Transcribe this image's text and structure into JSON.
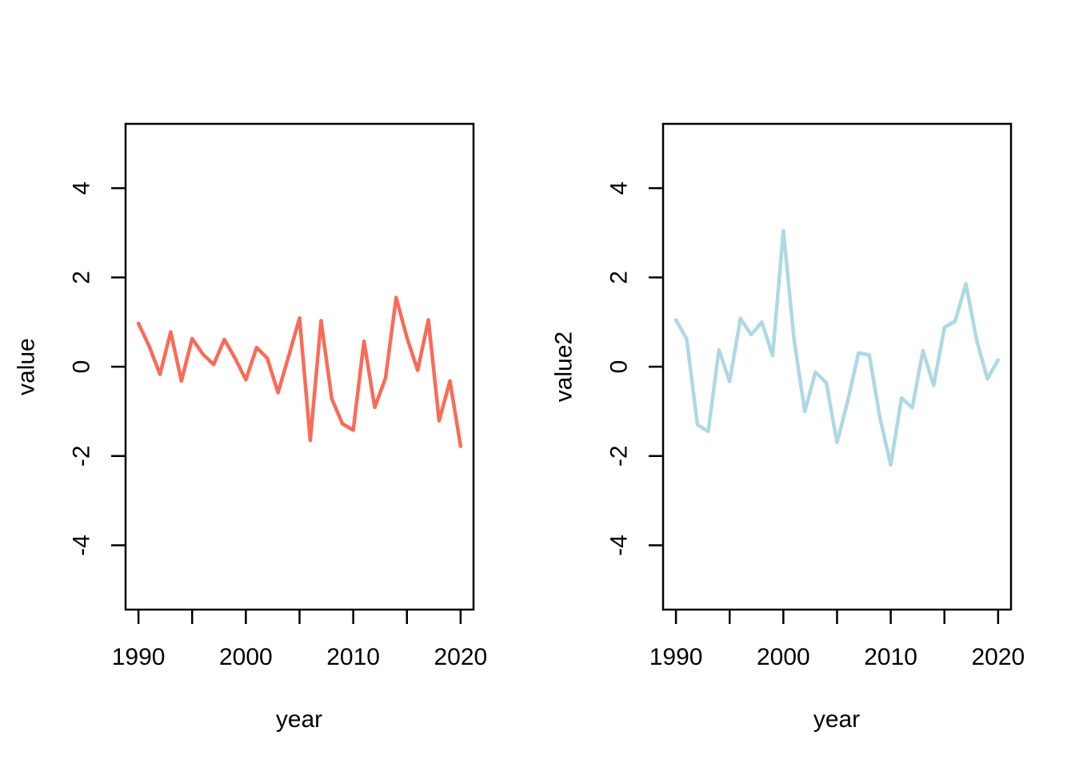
{
  "figure": {
    "background_color": "#FFFFFF",
    "axis_color": "#000000",
    "text_color": "#000000"
  },
  "chart_data": [
    {
      "type": "line",
      "panel": "left",
      "title": "",
      "xlabel": "year",
      "ylabel": "value",
      "line_color": "#FA6B57",
      "grid": false,
      "legend": null,
      "xlim": [
        1988.8,
        2021.2
      ],
      "ylim": [
        -5.44,
        5.44
      ],
      "xticks": [
        1990,
        1995,
        2000,
        2005,
        2010,
        2015,
        2020
      ],
      "xtick_labels": [
        "1990",
        "",
        "2000",
        "",
        "2010",
        "",
        "2020"
      ],
      "yticks": [
        -4,
        -2,
        0,
        2,
        4
      ],
      "ytick_labels": [
        "-4",
        "-2",
        "0",
        "2",
        "4"
      ],
      "x": [
        1990,
        1991,
        1992,
        1993,
        1994,
        1995,
        1996,
        1997,
        1998,
        1999,
        2000,
        2001,
        2002,
        2003,
        2004,
        2005,
        2006,
        2007,
        2008,
        2009,
        2010,
        2011,
        2012,
        2013,
        2014,
        2015,
        2016,
        2017,
        2018,
        2019,
        2020
      ],
      "values": [
        0.97,
        0.46,
        -0.17,
        0.78,
        -0.32,
        0.63,
        0.28,
        0.05,
        0.61,
        0.19,
        -0.29,
        0.43,
        0.19,
        -0.58,
        0.25,
        1.09,
        -1.65,
        1.03,
        -0.72,
        -1.28,
        -1.42,
        0.57,
        -0.91,
        -0.26,
        1.55,
        0.65,
        -0.08,
        1.05,
        -1.21,
        -0.32,
        -1.78
      ]
    },
    {
      "type": "line",
      "panel": "right",
      "title": "",
      "xlabel": "year",
      "ylabel": "value2",
      "line_color": "#ADD8E6",
      "grid": false,
      "legend": null,
      "xlim": [
        1988.8,
        2021.2
      ],
      "ylim": [
        -5.44,
        5.44
      ],
      "xticks": [
        1990,
        1995,
        2000,
        2005,
        2010,
        2015,
        2020
      ],
      "xtick_labels": [
        "1990",
        "",
        "2000",
        "",
        "2010",
        "",
        "2020"
      ],
      "yticks": [
        -4,
        -2,
        0,
        2,
        4
      ],
      "ytick_labels": [
        "-4",
        "-2",
        "0",
        "2",
        "4"
      ],
      "x": [
        1990,
        1991,
        1992,
        1993,
        1994,
        1995,
        1996,
        1997,
        1998,
        1999,
        2000,
        2001,
        2002,
        2003,
        2004,
        2005,
        2006,
        2007,
        2008,
        2009,
        2010,
        2011,
        2012,
        2013,
        2014,
        2015,
        2016,
        2017,
        2018,
        2019,
        2020
      ],
      "values": [
        1.05,
        0.62,
        -1.3,
        -1.45,
        0.38,
        -0.33,
        1.08,
        0.72,
        1.0,
        0.25,
        3.05,
        0.6,
        -1.0,
        -0.12,
        -0.36,
        -1.7,
        -0.76,
        0.31,
        0.26,
        -1.15,
        -2.2,
        -0.7,
        -0.92,
        0.36,
        -0.42,
        0.88,
        1.02,
        1.86,
        0.6,
        -0.27,
        0.15
      ]
    }
  ]
}
